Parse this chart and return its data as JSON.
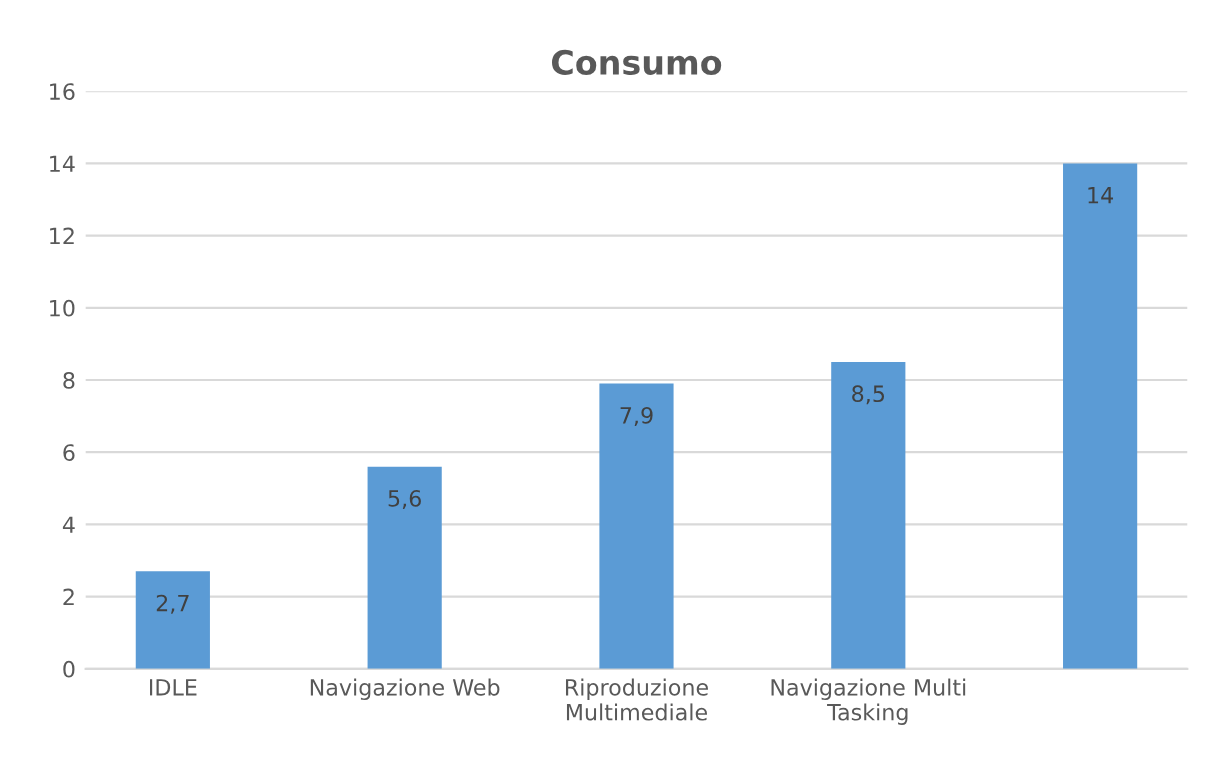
{
  "chart_data": {
    "type": "bar",
    "title": "Consumo",
    "categories": [
      "IDLE",
      "Navigazione Web",
      "Riproduzione\nMultimediale",
      "Navigazione Multi\nTasking",
      null
    ],
    "values": [
      2.7,
      5.6,
      7.9,
      8.5,
      14
    ],
    "value_labels": [
      "2,7",
      "5,6",
      "7,9",
      "8,5",
      "14"
    ],
    "color": "#5b9bd5",
    "ylim": [
      0,
      16
    ],
    "yticks": [
      0,
      2,
      4,
      6,
      8,
      10,
      12,
      14,
      16
    ],
    "grid": "y",
    "legend": false
  }
}
